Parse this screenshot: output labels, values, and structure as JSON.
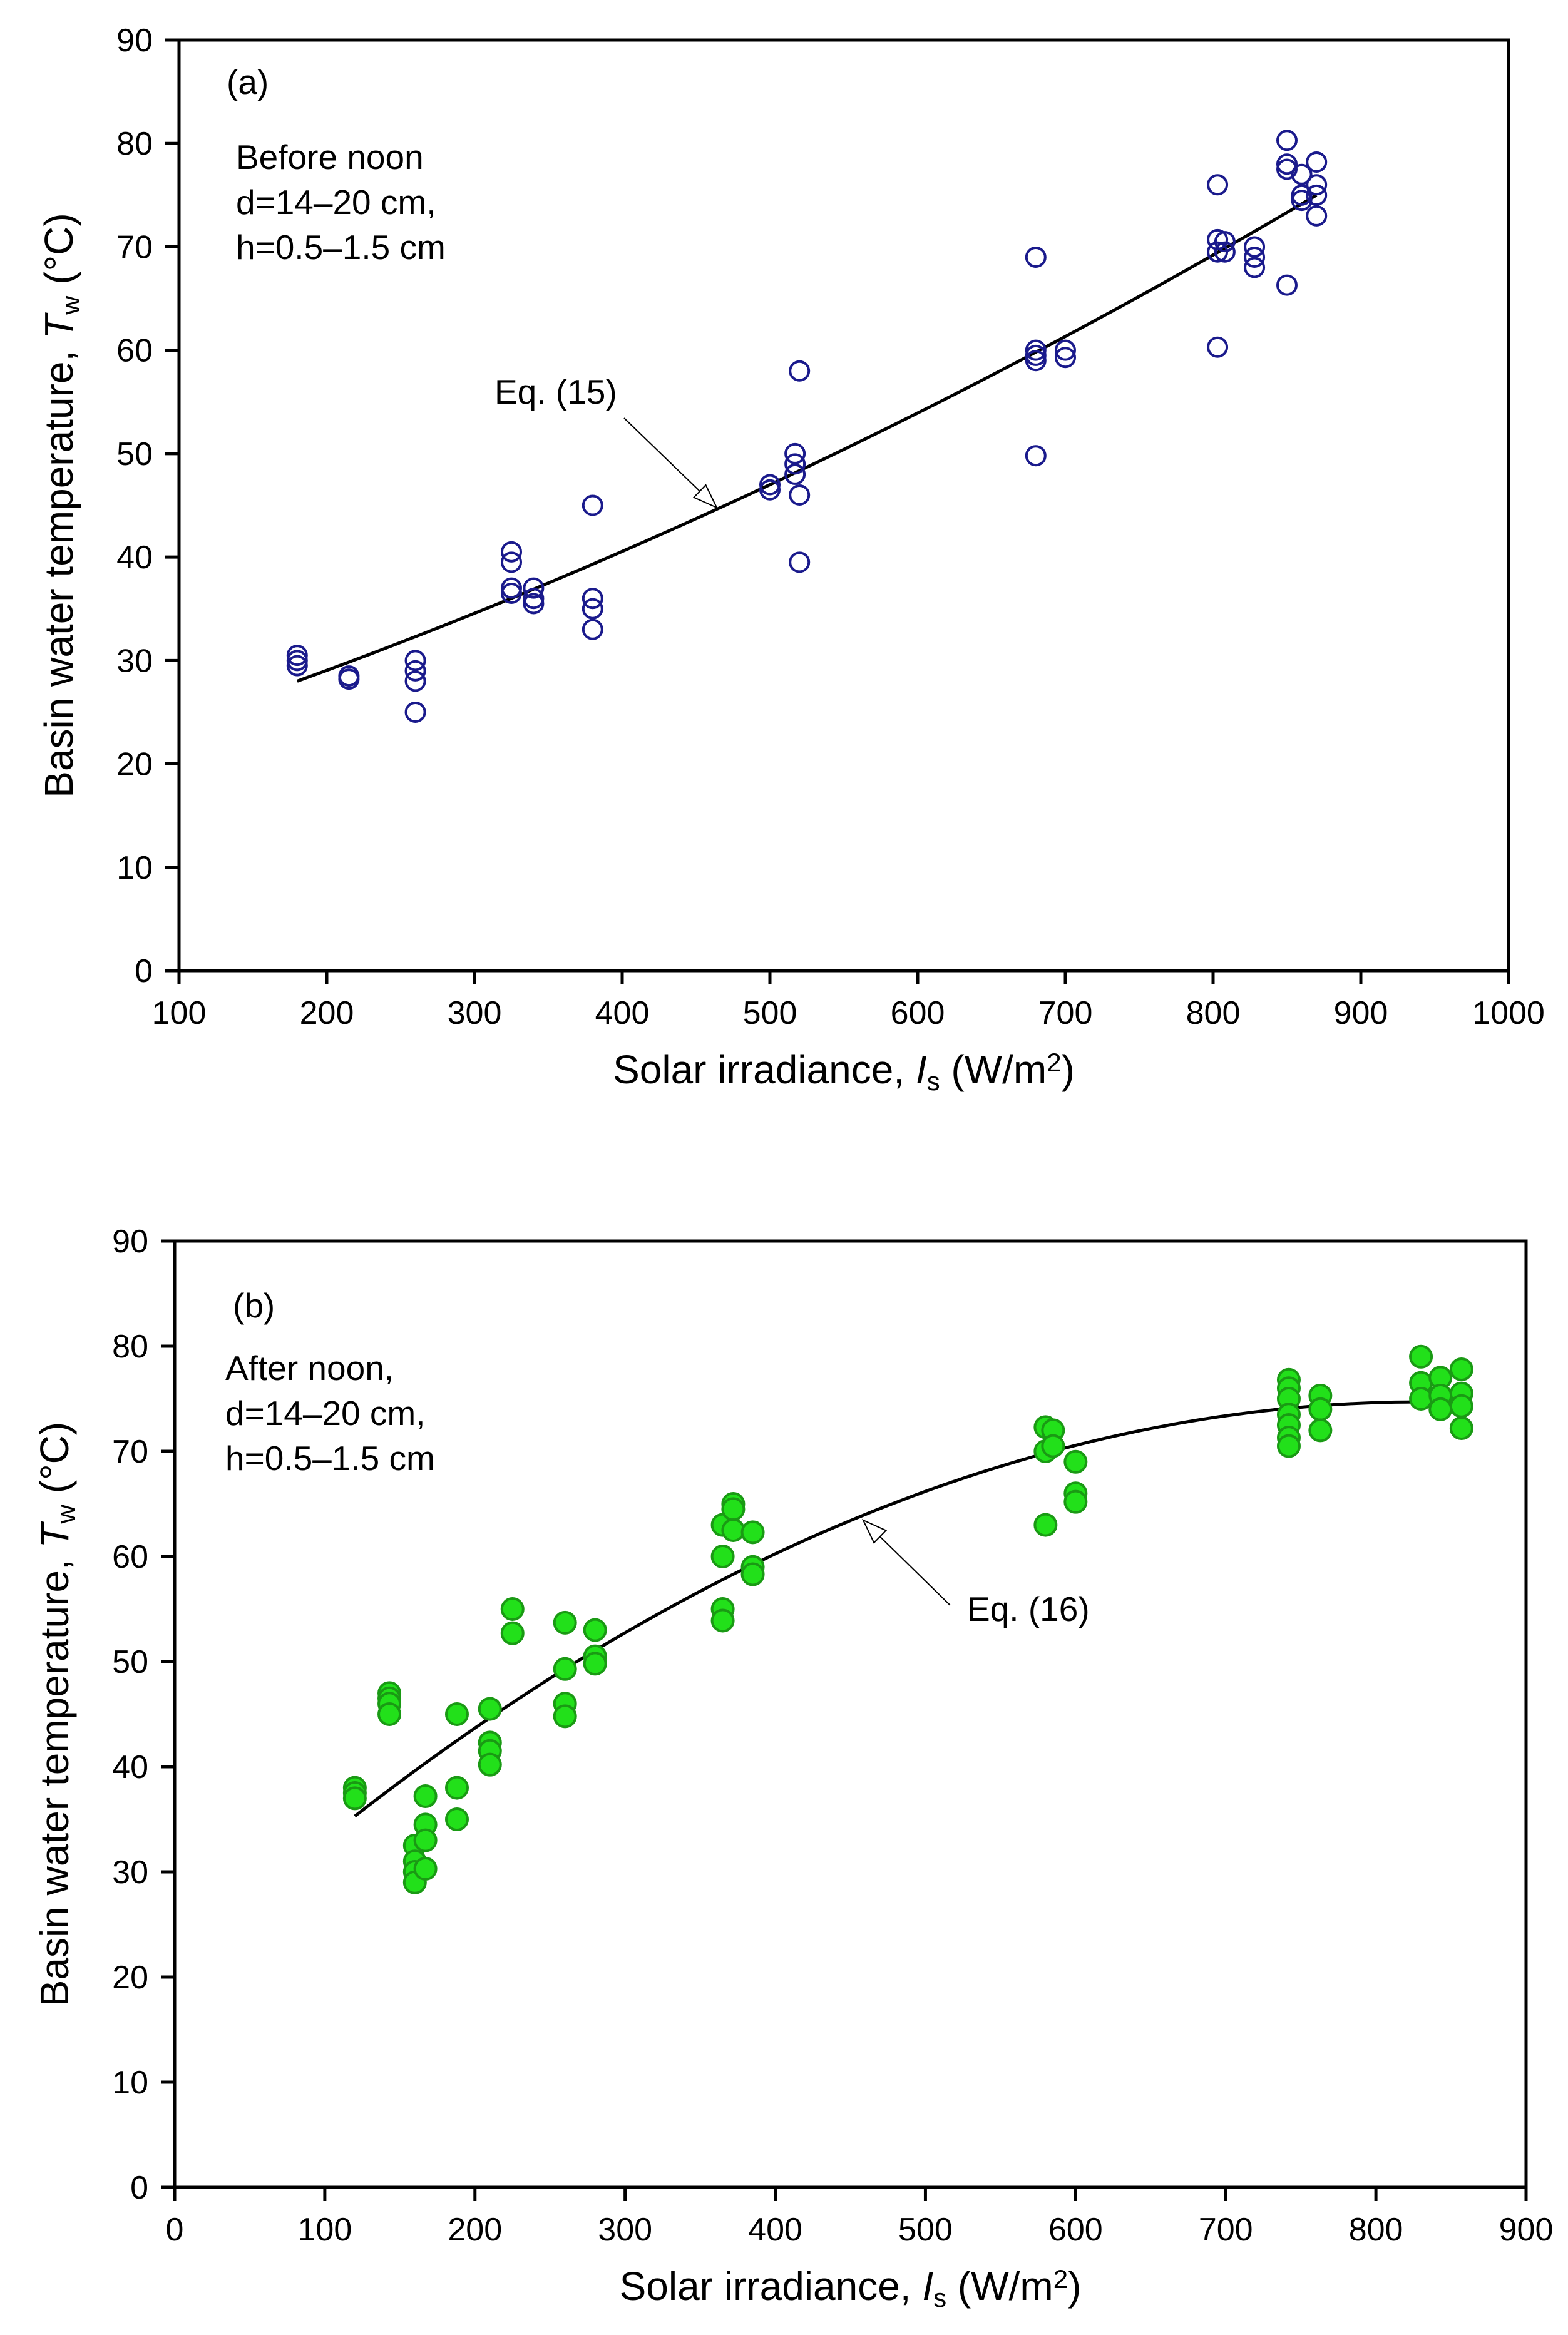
{
  "colors": {
    "panel_a_marker": "#1a1a8c",
    "panel_b_marker": "#22e01a",
    "panel_b_marker_edge": "#1a9a14",
    "curve": "#000000"
  },
  "chart_data": [
    {
      "type": "scatter",
      "panel_label": "(a)",
      "annotation_lines": [
        "Before noon",
        "d=14–20 cm,",
        "h=0.5–1.5 cm"
      ],
      "fit_label": "Eq. (15)",
      "xlabel": "Solar irradiance, I_s (W/m^2)",
      "xlabel_parts": [
        "Solar irradiance, ",
        "I",
        "s",
        " (W/m",
        "2",
        ")"
      ],
      "ylabel": "Basin water temperature, T_w (°C)",
      "ylabel_parts": [
        "Basin water temperature, ",
        "T",
        "w",
        " (",
        "o",
        "C)"
      ],
      "xlim": [
        100,
        1000
      ],
      "ylim": [
        0,
        90
      ],
      "xticks": [
        "100",
        "200",
        "300",
        "400",
        "500",
        "600",
        "700",
        "800",
        "900",
        "1000"
      ],
      "yticks": [
        "0",
        "10",
        "20",
        "30",
        "40",
        "50",
        "60",
        "70",
        "80",
        "90"
      ],
      "marker": "open-circle",
      "points": [
        [
          180,
          30.5
        ],
        [
          180,
          30
        ],
        [
          180,
          29.5
        ],
        [
          215,
          28.5
        ],
        [
          215,
          28.2
        ],
        [
          260,
          30
        ],
        [
          260,
          29
        ],
        [
          260,
          28
        ],
        [
          260,
          25
        ],
        [
          325,
          40.5
        ],
        [
          325,
          39.5
        ],
        [
          325,
          37
        ],
        [
          325,
          36.5
        ],
        [
          340,
          37
        ],
        [
          340,
          36
        ],
        [
          340,
          35.5
        ],
        [
          380,
          45
        ],
        [
          380,
          36
        ],
        [
          380,
          35
        ],
        [
          380,
          33
        ],
        [
          500,
          47
        ],
        [
          500,
          46.5
        ],
        [
          517,
          50
        ],
        [
          517,
          49
        ],
        [
          517,
          48
        ],
        [
          520,
          58
        ],
        [
          520,
          46
        ],
        [
          520,
          39.5
        ],
        [
          680,
          69
        ],
        [
          680,
          60
        ],
        [
          680,
          59.5
        ],
        [
          680,
          59
        ],
        [
          680,
          49.8
        ],
        [
          700,
          60
        ],
        [
          700,
          59.3
        ],
        [
          803,
          76
        ],
        [
          803,
          70.7
        ],
        [
          803,
          69.5
        ],
        [
          803,
          60.3
        ],
        [
          808,
          70.5
        ],
        [
          808,
          69.5
        ],
        [
          828,
          70
        ],
        [
          828,
          69
        ],
        [
          828,
          68
        ],
        [
          850,
          80.3
        ],
        [
          850,
          78
        ],
        [
          850,
          77.5
        ],
        [
          850,
          66.3
        ],
        [
          860,
          77
        ],
        [
          860,
          75
        ],
        [
          860,
          74.5
        ],
        [
          870,
          78.2
        ],
        [
          870,
          76
        ],
        [
          870,
          75
        ],
        [
          870,
          73
        ]
      ],
      "fit": {
        "form": "quadratic",
        "coef": [
          19.44,
          0.04331,
          2.3625e-05
        ],
        "xrange": [
          180,
          870
        ]
      }
    },
    {
      "type": "scatter",
      "panel_label": "(b)",
      "annotation_lines": [
        "After noon,",
        "d=14–20 cm,",
        "h=0.5–1.5 cm"
      ],
      "fit_label": "Eq. (16)",
      "xlabel": "Solar irradiance, I_s (W/m^2)",
      "xlabel_parts": [
        "Solar irradiance, ",
        "I",
        "s",
        " (W/m",
        "2",
        ")"
      ],
      "ylabel": "Basin water temperature, T_w (°C)",
      "ylabel_parts": [
        "Basin water temperature, ",
        "T",
        "w",
        " (",
        "o",
        "C)"
      ],
      "xlim": [
        0,
        900
      ],
      "ylim": [
        0,
        90
      ],
      "xticks": [
        "0",
        "100",
        "200",
        "300",
        "400",
        "500",
        "600",
        "700",
        "800",
        "900"
      ],
      "yticks": [
        "0",
        "10",
        "20",
        "30",
        "40",
        "50",
        "60",
        "70",
        "80",
        "90"
      ],
      "marker": "filled-circle",
      "points": [
        [
          120,
          38
        ],
        [
          120,
          37.5
        ],
        [
          120,
          37
        ],
        [
          143,
          47
        ],
        [
          143,
          46.5
        ],
        [
          143,
          46
        ],
        [
          143,
          45
        ],
        [
          160,
          32.5
        ],
        [
          160,
          31
        ],
        [
          160,
          30
        ],
        [
          160,
          29
        ],
        [
          167,
          37.2
        ],
        [
          167,
          34.5
        ],
        [
          167,
          33
        ],
        [
          167,
          30.3
        ],
        [
          188,
          45
        ],
        [
          188,
          38
        ],
        [
          188,
          35
        ],
        [
          210,
          45.5
        ],
        [
          210,
          42.3
        ],
        [
          210,
          41.5
        ],
        [
          210,
          40.2
        ],
        [
          225,
          55
        ],
        [
          225,
          52.7
        ],
        [
          260,
          53.7
        ],
        [
          260,
          49.3
        ],
        [
          260,
          46
        ],
        [
          260,
          44.8
        ],
        [
          280,
          53
        ],
        [
          280,
          50.5
        ],
        [
          280,
          49.8
        ],
        [
          365,
          63
        ],
        [
          365,
          60
        ],
        [
          365,
          55
        ],
        [
          365,
          53.9
        ],
        [
          372,
          65
        ],
        [
          372,
          64.5
        ],
        [
          372,
          62.5
        ],
        [
          385,
          62.3
        ],
        [
          385,
          59
        ],
        [
          385,
          58.3
        ],
        [
          580,
          72.3
        ],
        [
          580,
          70
        ],
        [
          580,
          63
        ],
        [
          585,
          72
        ],
        [
          585,
          70.5
        ],
        [
          600,
          69
        ],
        [
          600,
          66
        ],
        [
          600,
          65.2
        ],
        [
          742,
          76.8
        ],
        [
          742,
          76
        ],
        [
          742,
          75
        ],
        [
          742,
          73.5
        ],
        [
          742,
          72.5
        ],
        [
          742,
          71.3
        ],
        [
          742,
          70.5
        ],
        [
          763,
          75.3
        ],
        [
          763,
          74
        ],
        [
          763,
          72
        ],
        [
          830,
          79
        ],
        [
          830,
          76.5
        ],
        [
          830,
          75
        ],
        [
          843,
          77
        ],
        [
          843,
          75.3
        ],
        [
          843,
          74
        ],
        [
          857,
          77.8
        ],
        [
          857,
          75.5
        ],
        [
          857,
          74.3
        ],
        [
          857,
          72.2
        ]
      ],
      "fit": {
        "form": "vertex-quadratic",
        "peak_x": 830,
        "peak_y": 74.7,
        "k": 7.816e-05,
        "xrange": [
          120,
          857
        ]
      }
    }
  ]
}
